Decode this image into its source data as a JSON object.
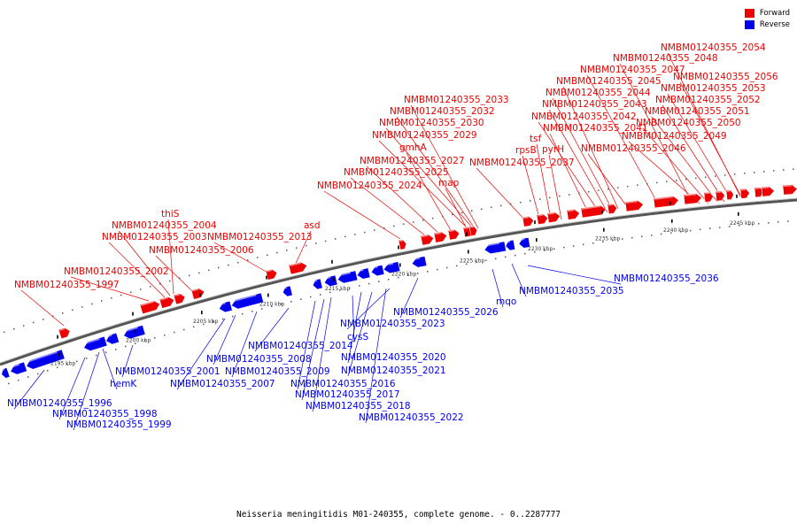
{
  "legend": {
    "forward_label": "Forward",
    "reverse_label": "Reverse",
    "forward_color": "#ee0000",
    "reverse_color": "#0000ee"
  },
  "caption": "Neisseria meningitidis M01-240355, complete genome. - 0..2287777",
  "ticks": [
    "2195 kbp",
    "2200 kbp",
    "2205 kbp",
    "2210 kbp",
    "2215 kbp",
    "2220 kbp",
    "2225 kbp",
    "2230 kbp",
    "2235 kbp",
    "2240 kbp",
    "2245 kbp"
  ],
  "forward_labels": [
    "NMBM01240355_1997",
    "NMBM01240355_2002",
    "thiS",
    "NMBM01240355_2004",
    "NMBM01240355_2003",
    "NMBM01240355_2006",
    "NMBM01240355_2013",
    "asd",
    "NMBM01240355_2024",
    "NMBM01240355_2025",
    "NMBM01240355_2027",
    "gmhA",
    "map",
    "NMBM01240355_2029",
    "NMBM01240355_2030",
    "NMBM01240355_2032",
    "NMBM01240355_2033",
    "NMBM01240355_2037",
    "rpsB",
    "tsf",
    "pyrH",
    "NMBM01240355_2041",
    "NMBM01240355_2042",
    "NMBM01240355_2043",
    "NMBM01240355_2044",
    "NMBM01240355_2045",
    "NMBM01240355_2047",
    "NMBM01240355_2048",
    "NMBM01240355_2054",
    "NMBM01240355_2046",
    "NMBM01240355_2049",
    "NMBM01240355_2050",
    "NMBM01240355_2051",
    "NMBM01240355_2052",
    "NMBM01240355_2053",
    "NMBM01240355_2056"
  ],
  "reverse_labels": [
    "NMBM01240355_1996",
    "NMBM01240355_1998",
    "NMBM01240355_1999",
    "hemK",
    "NMBM01240355_2001",
    "NMBM01240355_2007",
    "NMBM01240355_2008",
    "NMBM01240355_2009",
    "NMBM01240355_2014",
    "NMBM01240355_2016",
    "NMBM01240355_2017",
    "NMBM01240355_2018",
    "cysS",
    "NMBM01240355_2020",
    "NMBM01240355_2021",
    "NMBM01240355_2022",
    "NMBM01240355_2023",
    "NMBM01240355_2026",
    "mqo",
    "NMBM01240355_2035",
    "NMBM01240355_2036"
  ]
}
